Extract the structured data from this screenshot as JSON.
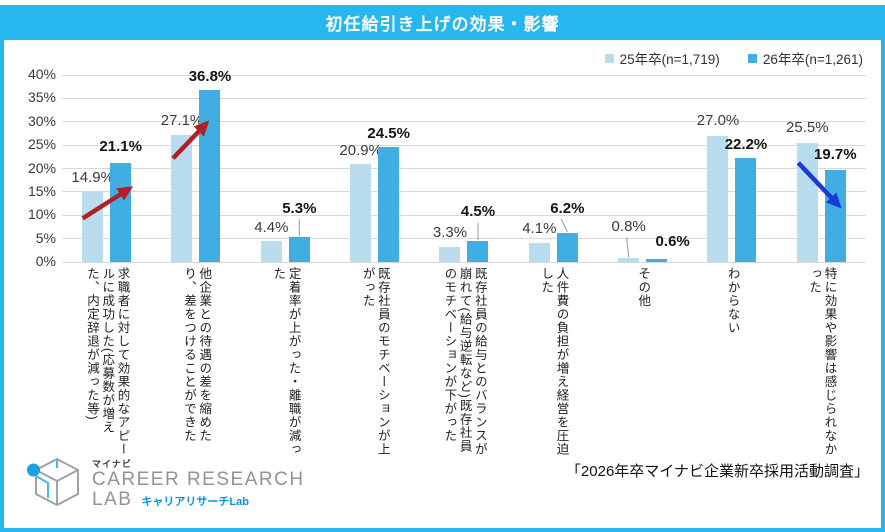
{
  "title": "初任給引き上げの効果・影響",
  "chart_data": {
    "type": "bar",
    "title": "初任給引き上げの効果・影響",
    "categories": [
      "求職者に対して効果的なアピールに成功した(応募数が増えた、内定辞退が減った等)",
      "他企業との待遇の差を縮めたり、差をつけることができた",
      "定着率が上がった・離職が減った",
      "既存社員のモチベーションが上がった",
      "既存社員の給与とのバランスが崩れて(給与逆転など)既存社員のモチベーションが下がった",
      "人件費の負担が増え経営を圧迫した",
      "その他",
      "わからない",
      "特に効果や影響は感じられなかった"
    ],
    "series": [
      {
        "name": "25年卒(n=1,719)",
        "color": "#b9dcee",
        "values": [
          14.9,
          27.1,
          4.4,
          20.9,
          3.3,
          4.1,
          0.8,
          27.0,
          25.5
        ]
      },
      {
        "name": "26年卒(n=1,261)",
        "color": "#41aee3",
        "values": [
          21.1,
          36.8,
          5.3,
          24.5,
          4.5,
          6.2,
          0.6,
          22.2,
          19.7
        ]
      }
    ],
    "ylim": [
      0,
      40
    ],
    "ytick_step": 5,
    "ytick_labels": [
      "0%",
      "5%",
      "10%",
      "15%",
      "20%",
      "25%",
      "30%",
      "35%",
      "40%"
    ],
    "value_label_format": "percent_1dp",
    "grid": true,
    "legend_position": "top-right",
    "annotations": [
      {
        "type": "increase-arrow",
        "category_index": 0,
        "color": "#b01f27"
      },
      {
        "type": "increase-arrow",
        "category_index": 1,
        "color": "#b01f27"
      },
      {
        "type": "decrease-arrow",
        "category_index": 8,
        "color": "#1a3ad6"
      }
    ]
  },
  "footer": {
    "source": "「2026年卒マイナビ企業新卒採用活動調査」",
    "logo": {
      "brand": "マイナビ",
      "line1": "CAREER RESEARCH",
      "line2": "LAB",
      "sub": "キャリアリサーチLab"
    }
  },
  "colors": {
    "accent_cyan": "#26b7ef",
    "series_25": "#b9dcee",
    "series_26": "#41aee3",
    "grid_line": "#d9d9d9",
    "increase_arrow": "#b01f27",
    "decrease_arrow": "#1a3ad6",
    "leader_line": "#999999",
    "logo_gray": "#909497",
    "logo_blue": "#0096df"
  }
}
